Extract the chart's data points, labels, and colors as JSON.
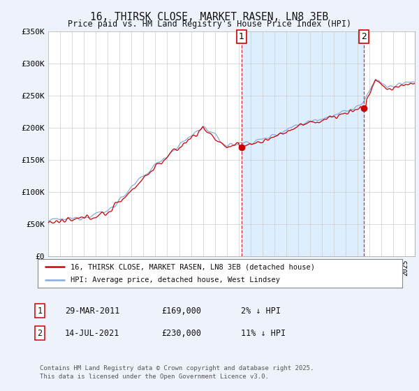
{
  "title": "16, THIRSK CLOSE, MARKET RASEN, LN8 3EB",
  "subtitle": "Price paid vs. HM Land Registry's House Price Index (HPI)",
  "bg_color": "#eef2fa",
  "plot_bg_color": "#ffffff",
  "fill_between_color": "#ddeeff",
  "hpi_color": "#88aadd",
  "price_color": "#cc0000",
  "ylim": [
    0,
    350000
  ],
  "yticks": [
    0,
    50000,
    100000,
    150000,
    200000,
    250000,
    300000,
    350000
  ],
  "ytick_labels": [
    "£0",
    "£50K",
    "£100K",
    "£150K",
    "£200K",
    "£250K",
    "£300K",
    "£350K"
  ],
  "xlim_left": 1995.0,
  "xlim_right": 2025.8,
  "marker1_date": 2011.24,
  "marker1_price": 169000,
  "marker1_label": "1",
  "marker2_date": 2021.54,
  "marker2_price": 230000,
  "marker2_label": "2",
  "legend_line1": "16, THIRSK CLOSE, MARKET RASEN, LN8 3EB (detached house)",
  "legend_line2": "HPI: Average price, detached house, West Lindsey",
  "table_row1_num": "1",
  "table_row1_date": "29-MAR-2011",
  "table_row1_price": "£169,000",
  "table_row1_hpi": "2% ↓ HPI",
  "table_row2_num": "2",
  "table_row2_date": "14-JUL-2021",
  "table_row2_price": "£230,000",
  "table_row2_hpi": "11% ↓ HPI",
  "footer": "Contains HM Land Registry data © Crown copyright and database right 2025.\nThis data is licensed under the Open Government Licence v3.0.",
  "seed": 12345
}
